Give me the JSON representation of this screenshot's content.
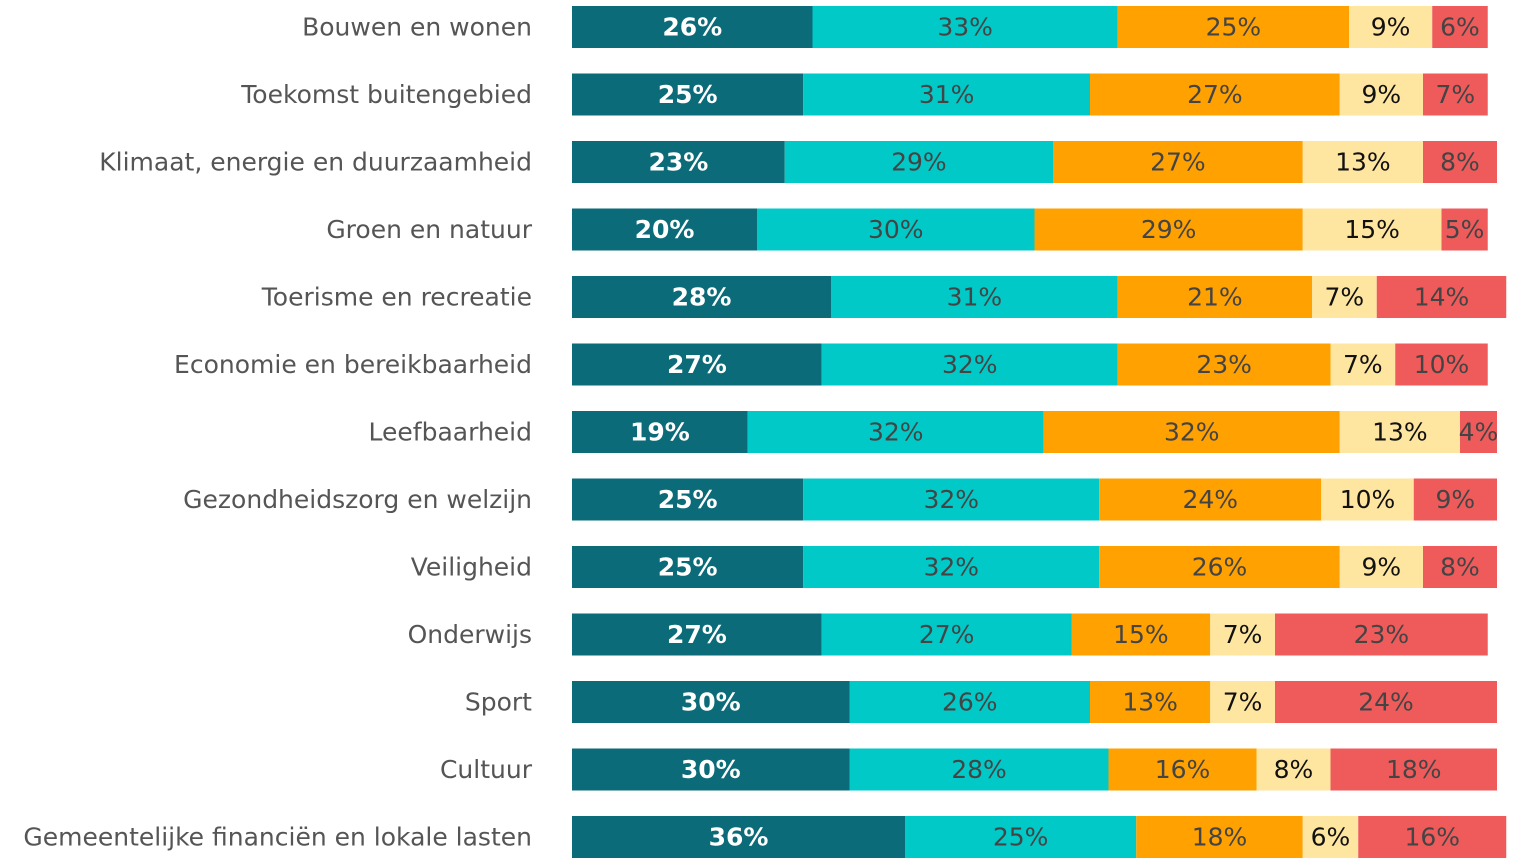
{
  "chart_data": {
    "type": "stacked_bar_horizontal",
    "categories": [
      "Bouwen en wonen",
      "Toekomst buitengebied",
      "Klimaat, energie en duurzaamheid",
      "Groen en natuur",
      "Toerisme en recreatie",
      "Economie en bereikbaarheid",
      "Leefbaarheid",
      "Gezondheidszorg en welzijn",
      "Veiligheid",
      "Onderwijs",
      "Sport",
      "Cultuur",
      "Gemeentelijke financiën en lokale lasten"
    ],
    "xlim": [
      0,
      100
    ],
    "series": [
      {
        "color": "#0b6b78",
        "values": [
          26,
          25,
          23,
          20,
          28,
          27,
          19,
          25,
          25,
          27,
          30,
          30,
          36
        ],
        "value_labels": [
          "26%",
          "25%",
          "23%",
          "20%",
          "28%",
          "27%",
          "19%",
          "25%",
          "25%",
          "27%",
          "30%",
          "30%",
          "36%"
        ]
      },
      {
        "color": "#00c9c8",
        "values": [
          33,
          31,
          29,
          30,
          31,
          32,
          32,
          32,
          32,
          27,
          26,
          28,
          25
        ],
        "value_labels": [
          "33%",
          "31%",
          "29%",
          "30%",
          "31%",
          "32%",
          "32%",
          "32%",
          "32%",
          "27%",
          "26%",
          "28%",
          "25%"
        ]
      },
      {
        "color": "#ffa100",
        "values": [
          25,
          27,
          27,
          29,
          21,
          23,
          32,
          24,
          26,
          15,
          13,
          16,
          18
        ],
        "value_labels": [
          "25%",
          "27%",
          "27%",
          "29%",
          "21%",
          "23%",
          "32%",
          "24%",
          "26%",
          "15%",
          "13%",
          "16%",
          "18%"
        ]
      },
      {
        "color": "#ffe6a0",
        "values": [
          9,
          9,
          13,
          15,
          7,
          7,
          13,
          10,
          9,
          7,
          7,
          8,
          6
        ],
        "value_labels": [
          "9%",
          "9%",
          "13%",
          "15%",
          "7%",
          "7%",
          "13%",
          "10%",
          "9%",
          "7%",
          "7%",
          "8%",
          "6%"
        ]
      },
      {
        "color": "#ef5b5b",
        "values": [
          6,
          7,
          8,
          5,
          14,
          10,
          4,
          9,
          8,
          23,
          24,
          18,
          16
        ],
        "value_labels": [
          "6%",
          "7%",
          "8%",
          "5%",
          "14%",
          "10%",
          "4%",
          "9%",
          "8%",
          "23%",
          "24%",
          "18%",
          "16%"
        ]
      }
    ]
  }
}
